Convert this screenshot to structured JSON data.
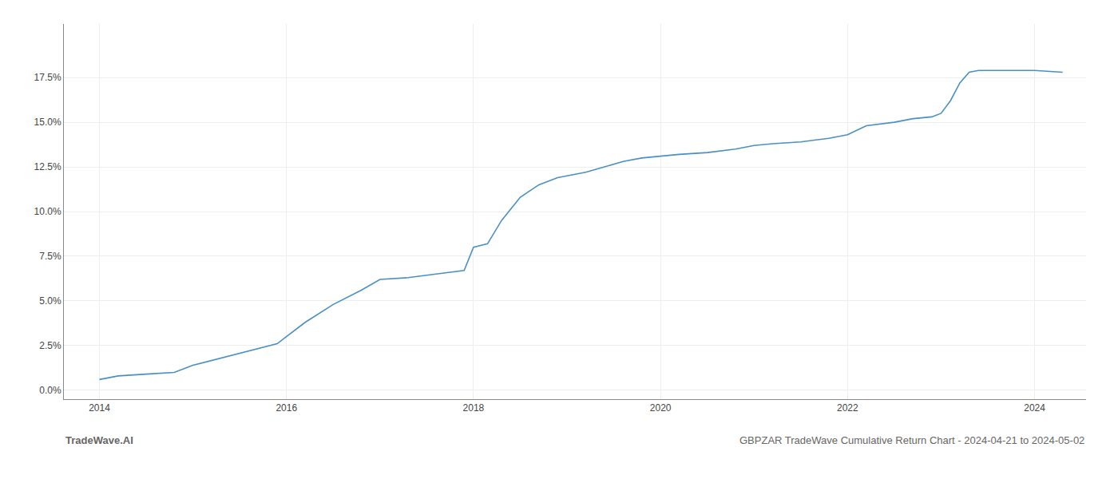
{
  "chart_data": {
    "type": "line",
    "title": "GBPZAR TradeWave Cumulative Return Chart - 2024-04-21 to 2024-05-02",
    "annotations": [
      "TradeWave.AI"
    ],
    "color": "#4a90c4",
    "grid": true,
    "x": [
      2014.0,
      2014.2,
      2014.5,
      2014.8,
      2015.0,
      2015.3,
      2015.6,
      2015.9,
      2016.0,
      2016.2,
      2016.5,
      2016.8,
      2017.0,
      2017.3,
      2017.6,
      2017.9,
      2018.0,
      2018.15,
      2018.3,
      2018.5,
      2018.7,
      2018.9,
      2019.0,
      2019.2,
      2019.4,
      2019.6,
      2019.8,
      2020.0,
      2020.2,
      2020.5,
      2020.8,
      2021.0,
      2021.2,
      2021.5,
      2021.8,
      2022.0,
      2022.2,
      2022.5,
      2022.7,
      2022.9,
      2023.0,
      2023.1,
      2023.2,
      2023.3,
      2023.4,
      2023.5,
      2023.7,
      2024.0,
      2024.3
    ],
    "values": [
      0.006,
      0.008,
      0.009,
      0.01,
      0.014,
      0.018,
      0.022,
      0.026,
      0.03,
      0.038,
      0.048,
      0.056,
      0.062,
      0.063,
      0.065,
      0.067,
      0.08,
      0.082,
      0.095,
      0.108,
      0.115,
      0.119,
      0.12,
      0.122,
      0.125,
      0.128,
      0.13,
      0.131,
      0.132,
      0.133,
      0.135,
      0.137,
      0.138,
      0.139,
      0.141,
      0.143,
      0.148,
      0.15,
      0.152,
      0.153,
      0.155,
      0.162,
      0.172,
      0.178,
      0.179,
      0.179,
      0.179,
      0.179,
      0.178
    ],
    "xlim": [
      2013.62,
      2024.55
    ],
    "xticks": [
      2014,
      2016,
      2018,
      2020,
      2022,
      2024
    ],
    "ylim": [
      -0.005,
      0.205
    ],
    "yticks": [
      {
        "value": 0.0,
        "label": "0.0%"
      },
      {
        "value": 0.025,
        "label": "2.5%"
      },
      {
        "value": 0.05,
        "label": "5.0%"
      },
      {
        "value": 0.075,
        "label": "7.5%"
      },
      {
        "value": 0.1,
        "label": "10.0%"
      },
      {
        "value": 0.125,
        "label": "12.5%"
      },
      {
        "value": 0.15,
        "label": "15.0%"
      },
      {
        "value": 0.175,
        "label": "17.5%"
      }
    ]
  }
}
